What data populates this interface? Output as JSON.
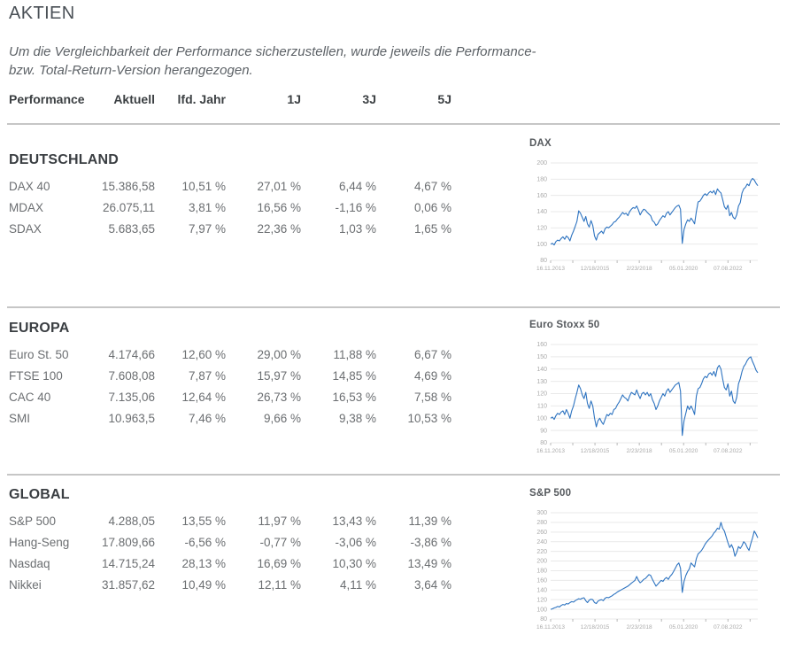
{
  "page": {
    "title": "AKTIEN",
    "intro_line1": "Um die Vergleichbarkeit der Performance sicherzustellen, wurde jeweils die Performance-",
    "intro_line2": "bzw. Total-Return-Version herangezogen."
  },
  "table": {
    "headers": [
      "Performance",
      "Aktuell",
      "lfd. Jahr",
      "1J",
      "3J",
      "5J"
    ],
    "sections": [
      {
        "title": "DEUTSCHLAND",
        "rows": [
          {
            "name": "DAX 40",
            "values": [
              "15.386,58",
              "10,51 %",
              "27,01 %",
              "6,44 %",
              "4,67 %"
            ]
          },
          {
            "name": "MDAX",
            "values": [
              "26.075,11",
              "3,81 %",
              "16,56 %",
              "-1,16 %",
              "0,06 %"
            ]
          },
          {
            "name": "SDAX",
            "values": [
              "5.683,65",
              "7,97 %",
              "22,36 %",
              "1,03 %",
              "1,65 %"
            ]
          }
        ]
      },
      {
        "title": "EUROPA",
        "rows": [
          {
            "name": "Euro St. 50",
            "values": [
              "4.174,66",
              "12,60 %",
              "29,00 %",
              "11,88 %",
              "6,67 %"
            ]
          },
          {
            "name": "FTSE 100",
            "values": [
              "7.608,08",
              "7,87 %",
              "15,97 %",
              "14,85 %",
              "4,69 %"
            ]
          },
          {
            "name": "CAC 40",
            "values": [
              "7.135,06",
              "12,64 %",
              "26,73 %",
              "16,53 %",
              "7,58 %"
            ]
          },
          {
            "name": "SMI",
            "values": [
              "10.963,5",
              "7,46 %",
              "9,66 %",
              "9,38 %",
              "10,53 %"
            ]
          }
        ]
      },
      {
        "title": "GLOBAL",
        "rows": [
          {
            "name": "S&P 500",
            "values": [
              "4.288,05",
              "13,55 %",
              "11,97 %",
              "13,43 %",
              "11,39 %"
            ]
          },
          {
            "name": "Hang-Seng",
            "values": [
              "17.809,66",
              "-6,56 %",
              "-0,77 %",
              "-3,06 %",
              "-3,86 %"
            ]
          },
          {
            "name": "Nasdaq",
            "values": [
              "14.715,24",
              "28,13 %",
              "16,69 %",
              "10,30 %",
              "13,49 %"
            ]
          },
          {
            "name": "Nikkei",
            "values": [
              "31.857,62",
              "10,49 %",
              "12,11 %",
              "4,11 %",
              "3,64 %"
            ]
          }
        ]
      }
    ]
  },
  "colors": {
    "line": "#2d73c0",
    "grid": "#e9e9e9",
    "axis_label": "#aaaaaa",
    "tick": "#9a9a9a",
    "divider": "#c6c6c6"
  },
  "chart_data": [
    {
      "type": "line",
      "title": "DAX",
      "grid": true,
      "legend": "none",
      "ylim": [
        80,
        200
      ],
      "yticks": [
        80,
        100,
        120,
        140,
        160,
        180,
        200
      ],
      "x_tick_labels": [
        "16.11.2013",
        "12/18/2015",
        "2/23/2018",
        "05.01.2020",
        "07.08.2022"
      ],
      "values": [
        100,
        101,
        99,
        103,
        105,
        104,
        107,
        109,
        106,
        110,
        108,
        104,
        111,
        116,
        122,
        128,
        141,
        138,
        133,
        128,
        134,
        125,
        121,
        129,
        123,
        110,
        105,
        112,
        114,
        116,
        113,
        119,
        121,
        120,
        122,
        124,
        127,
        128,
        131,
        133,
        136,
        139,
        137,
        138,
        135,
        140,
        143,
        145,
        144,
        147,
        142,
        136,
        140,
        143,
        142,
        139,
        137,
        135,
        129,
        127,
        123,
        125,
        129,
        132,
        135,
        133,
        138,
        140,
        136,
        139,
        142,
        145,
        147,
        148,
        143,
        101,
        118,
        125,
        130,
        128,
        132,
        129,
        125,
        140,
        152,
        153,
        156,
        160,
        162,
        160,
        163,
        165,
        163,
        166,
        161,
        168,
        165,
        163,
        155,
        146,
        143,
        148,
        135,
        139,
        133,
        131,
        136,
        147,
        151,
        163,
        168,
        170,
        174,
        172,
        178,
        181,
        179,
        175,
        172
      ]
    },
    {
      "type": "line",
      "title": "Euro Stoxx 50",
      "grid": true,
      "legend": "none",
      "ylim": [
        80,
        160
      ],
      "yticks": [
        80,
        90,
        100,
        110,
        120,
        130,
        140,
        150,
        160
      ],
      "x_tick_labels": [
        "16.11.2013",
        "12/18/2015",
        "2/23/2018",
        "05.01.2020",
        "07.08.2022"
      ],
      "values": [
        100,
        101,
        99,
        102,
        104,
        103,
        105,
        106,
        103,
        107,
        104,
        100,
        106,
        110,
        116,
        121,
        127,
        124,
        119,
        116,
        121,
        112,
        108,
        114,
        110,
        100,
        93,
        98,
        100,
        97,
        95,
        99,
        103,
        102,
        104,
        103,
        107,
        108,
        111,
        113,
        116,
        119,
        117,
        116,
        114,
        118,
        121,
        120,
        119,
        123,
        119,
        116,
        120,
        121,
        119,
        121,
        118,
        120,
        115,
        112,
        107,
        110,
        114,
        117,
        120,
        118,
        122,
        124,
        121,
        123,
        125,
        127,
        128,
        129,
        122,
        86,
        98,
        104,
        110,
        107,
        110,
        107,
        103,
        118,
        124,
        125,
        128,
        132,
        134,
        133,
        136,
        137,
        135,
        138,
        134,
        141,
        143,
        140,
        132,
        125,
        123,
        128,
        118,
        122,
        114,
        112,
        117,
        128,
        132,
        138,
        142,
        144,
        147,
        149,
        150,
        146,
        143,
        139,
        137
      ]
    },
    {
      "type": "line",
      "title": "S&P 500",
      "grid": true,
      "legend": "none",
      "ylim": [
        80,
        300
      ],
      "yticks": [
        80,
        100,
        120,
        140,
        160,
        180,
        200,
        220,
        240,
        260,
        280,
        300
      ],
      "x_tick_labels": [
        "16.11.2013",
        "12/18/2015",
        "2/23/2018",
        "05.01.2020",
        "07.08.2022"
      ],
      "values": [
        100,
        101,
        103,
        104,
        106,
        105,
        108,
        110,
        109,
        112,
        111,
        114,
        116,
        115,
        118,
        120,
        122,
        121,
        123,
        124,
        118,
        114,
        119,
        121,
        120,
        114,
        112,
        117,
        119,
        120,
        118,
        123,
        125,
        124,
        126,
        128,
        131,
        133,
        136,
        138,
        140,
        142,
        144,
        146,
        148,
        151,
        154,
        157,
        160,
        168,
        160,
        155,
        158,
        162,
        164,
        168,
        172,
        170,
        162,
        155,
        148,
        152,
        156,
        160,
        158,
        163,
        166,
        162,
        168,
        172,
        178,
        185,
        192,
        196,
        185,
        135,
        158,
        170,
        178,
        184,
        196,
        192,
        188,
        205,
        215,
        218,
        222,
        228,
        235,
        240,
        244,
        248,
        252,
        258,
        262,
        268,
        266,
        280,
        268,
        262,
        250,
        238,
        228,
        234,
        226,
        210,
        218,
        230,
        226,
        232,
        240,
        236,
        228,
        222,
        236,
        248,
        262,
        256,
        248
      ]
    }
  ]
}
